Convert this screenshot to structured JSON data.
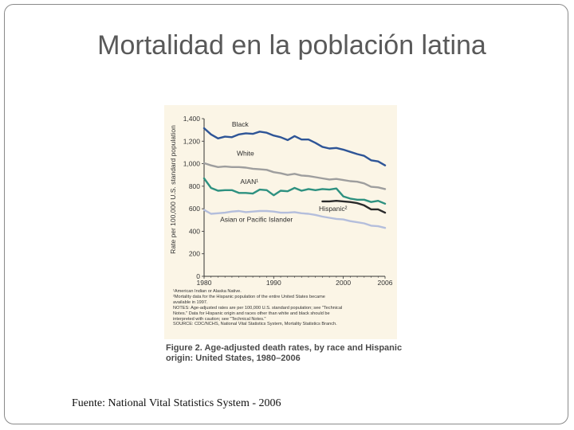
{
  "slide": {
    "title": "Mortalidad en la población latina",
    "source": "Fuente:  National Vital Statistics System - 2006"
  },
  "figure": {
    "caption_line1": "Figure 2. Age-adjusted death rates, by race and Hispanic",
    "caption_line2": "origin: United States, 1980–2006",
    "notes": [
      "¹American Indian or Alaska Native.",
      "²Mortality data for the Hispanic population of the entire United States became",
      "available in 1997.",
      "NOTES: Age-adjusted rates are per 100,000 U.S. standard population; see \"Technical",
      "Notes.\" Data for Hispanic origin and races other than white and black should be",
      "interpreted with caution; see \"Technical Notes.\"",
      "SOURCE: CDC/NCHS, National Vital Statistics System, Mortality Statistics Branch."
    ]
  },
  "chart_data": {
    "type": "line",
    "title": "Figure 2. Age-adjusted death rates, by race and Hispanic origin: United States, 1980–2006",
    "xlabel": "",
    "ylabel": "Rate per 100,000 U.S. standard population",
    "xlim": [
      1980,
      2006
    ],
    "ylim": [
      0,
      1400
    ],
    "x_ticks": [
      "1980",
      "1990",
      "2000",
      "2006"
    ],
    "y_ticks": [
      "0",
      "200",
      "400",
      "600",
      "800",
      "1,000",
      "1,200",
      "1,400"
    ],
    "x_tick_values": [
      1980,
      1990,
      2000,
      2006
    ],
    "y_tick_values": [
      0,
      200,
      400,
      600,
      800,
      1000,
      1200,
      1400
    ],
    "grid": false,
    "series": [
      {
        "name": "Black",
        "color": "#2e5597",
        "x": [
          1980,
          1981,
          1982,
          1983,
          1984,
          1985,
          1986,
          1987,
          1988,
          1989,
          1990,
          1991,
          1992,
          1993,
          1994,
          1995,
          1996,
          1997,
          1998,
          1999,
          2000,
          2001,
          2002,
          2003,
          2004,
          2005,
          2006
        ],
        "values": [
          1315,
          1260,
          1225,
          1240,
          1235,
          1260,
          1270,
          1265,
          1285,
          1275,
          1250,
          1235,
          1210,
          1245,
          1215,
          1215,
          1185,
          1150,
          1135,
          1140,
          1125,
          1105,
          1085,
          1070,
          1030,
          1020,
          985
        ]
      },
      {
        "name": "White",
        "color": "#9e9e9e",
        "x": [
          1980,
          1981,
          1982,
          1983,
          1984,
          1985,
          1986,
          1987,
          1988,
          1989,
          1990,
          1991,
          1992,
          1993,
          1994,
          1995,
          1996,
          1997,
          1998,
          1999,
          2000,
          2001,
          2002,
          2003,
          2004,
          2005,
          2006
        ],
        "values": [
          1005,
          985,
          970,
          975,
          970,
          970,
          965,
          955,
          950,
          945,
          925,
          915,
          900,
          910,
          895,
          890,
          880,
          870,
          860,
          865,
          855,
          845,
          840,
          825,
          795,
          790,
          775
        ]
      },
      {
        "name": "AIAN¹",
        "color": "#2e9180",
        "x": [
          1980,
          1981,
          1982,
          1983,
          1984,
          1985,
          1986,
          1987,
          1988,
          1989,
          1990,
          1991,
          1992,
          1993,
          1994,
          1995,
          1996,
          1997,
          1998,
          1999,
          2000,
          2001,
          2002,
          2003,
          2004,
          2005,
          2006
        ],
        "values": [
          870,
          785,
          760,
          765,
          765,
          740,
          740,
          735,
          770,
          765,
          720,
          760,
          755,
          785,
          760,
          775,
          765,
          775,
          770,
          780,
          710,
          690,
          680,
          680,
          660,
          670,
          645
        ]
      },
      {
        "name": "Hispanic²",
        "color": "#2a2a2a",
        "x": [
          1997,
          1998,
          1999,
          2000,
          2001,
          2002,
          2003,
          2004,
          2005,
          2006
        ],
        "values": [
          665,
          665,
          670,
          665,
          660,
          650,
          630,
          595,
          595,
          565
        ]
      },
      {
        "name": "Asian or Pacific Islander",
        "color": "#b4bedc",
        "x": [
          1980,
          1981,
          1982,
          1983,
          1984,
          1985,
          1986,
          1987,
          1988,
          1989,
          1990,
          1991,
          1992,
          1993,
          1994,
          1995,
          1996,
          1997,
          1998,
          1999,
          2000,
          2001,
          2002,
          2003,
          2004,
          2005,
          2006
        ],
        "values": [
          590,
          555,
          560,
          565,
          575,
          580,
          570,
          575,
          580,
          580,
          575,
          565,
          565,
          570,
          560,
          555,
          545,
          530,
          520,
          510,
          505,
          490,
          480,
          470,
          450,
          445,
          430
        ]
      }
    ]
  }
}
